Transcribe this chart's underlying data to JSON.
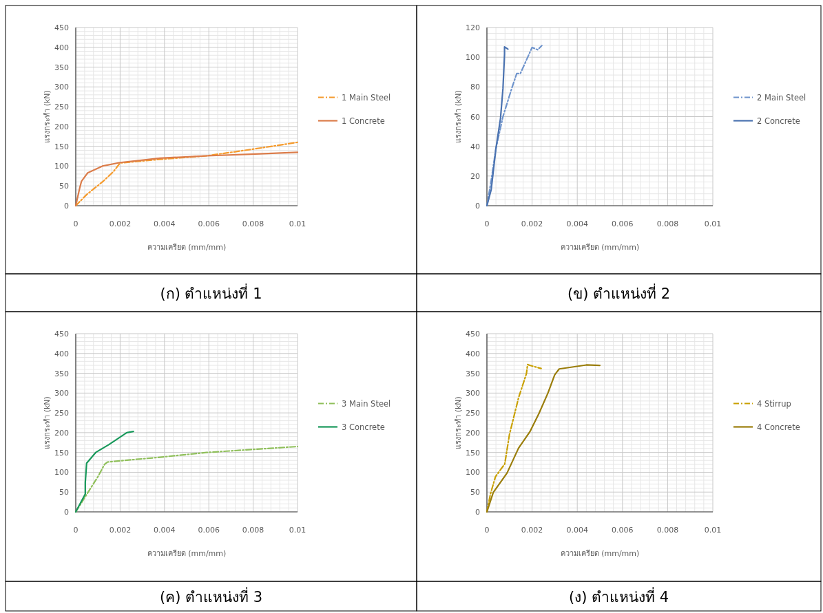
{
  "chart_data": [
    {
      "type": "line",
      "xlabel": "ความเครียด  (mm/mm)",
      "ylabel": "แรงกระทำ (kN)",
      "annotations": [
        "(ก)  ตำแหน่งที่ 1"
      ],
      "xlim": [
        0,
        0.01
      ],
      "xticks": [
        0,
        0.002,
        0.004,
        0.006,
        0.008,
        0.01
      ],
      "ylim": [
        0,
        450
      ],
      "yticks": [
        0,
        50,
        100,
        150,
        200,
        250,
        300,
        350,
        400,
        450
      ],
      "grid": true,
      "legend": "right",
      "series": [
        {
          "name": "1 Main Steel",
          "color": "#f59a2c",
          "line_style": "dashed",
          "x": [
            0,
            0.00049,
            0.0012,
            0.0017,
            0.002,
            0.0038,
            0.0059,
            0.0079,
            0.01
          ],
          "values": [
            0,
            28,
            60,
            86,
            108,
            117,
            126,
            142,
            160
          ]
        },
        {
          "name": "1 Concrete",
          "color": "#db7c4a",
          "line_style": "solid",
          "x": [
            0,
            0.00018,
            0.00026,
            0.00054,
            0.0012,
            0.002,
            0.0038,
            0.0059,
            0.0079,
            0.01
          ],
          "values": [
            0,
            45,
            62,
            83,
            100,
            109,
            120,
            126,
            130,
            135
          ]
        }
      ]
    },
    {
      "type": "line",
      "xlabel": "ความเครียด  (mm/mm)",
      "ylabel": "แรงกระทำ (kN)",
      "annotations": [
        "(ข)  ตำแหน่งที่ 2"
      ],
      "xlim": [
        0,
        0.01
      ],
      "xticks": [
        0,
        0.002,
        0.004,
        0.006,
        0.008,
        0.01
      ],
      "ylim": [
        0,
        120
      ],
      "yticks": [
        0,
        20,
        40,
        60,
        80,
        100,
        120
      ],
      "grid": true,
      "legend": "right",
      "series": [
        {
          "name": "2 Main Steel",
          "color": "#6f94cc",
          "line_style": "dashed",
          "x": [
            0,
            0.00019,
            0.0004,
            0.00071,
            0.00112,
            0.00132,
            0.00148,
            0.002,
            0.00225,
            0.00243
          ],
          "values": [
            0,
            17,
            38.6,
            60,
            80,
            89,
            89,
            106.6,
            105,
            107.8
          ]
        },
        {
          "name": "2 Concrete",
          "color": "#4a72b0",
          "line_style": "solid",
          "x": [
            0,
            0.00019,
            0.0004,
            0.0006,
            0.00071,
            0.00078,
            0.00078,
            0.00093
          ],
          "values": [
            0,
            10.8,
            38.6,
            58.7,
            78.8,
            102,
            107,
            105.5
          ]
        }
      ]
    },
    {
      "type": "line",
      "xlabel": "ความเครียด  (mm/mm)",
      "ylabel": "แรงกระทำ (kN)",
      "annotations": [
        "(ค)  ตำแหน่งที่ 3"
      ],
      "xlim": [
        0,
        0.01
      ],
      "xticks": [
        0,
        0.002,
        0.004,
        0.006,
        0.008,
        0.01
      ],
      "ylim": [
        0,
        450
      ],
      "yticks": [
        0,
        50,
        100,
        150,
        200,
        250,
        300,
        350,
        400,
        450
      ],
      "grid": true,
      "legend": "right",
      "series": [
        {
          "name": "3 Main Steel",
          "color": "#8fbf5a",
          "line_style": "dashed",
          "x": [
            0,
            0.00064,
            0.001,
            0.0013,
            0.00144,
            0.0038,
            0.0059,
            0.01
          ],
          "values": [
            0,
            57,
            89,
            120,
            126,
            138,
            150,
            165
          ]
        },
        {
          "name": "3 Concrete",
          "color": "#17985a",
          "line_style": "solid",
          "x": [
            0,
            0.00043,
            0.00043,
            0.00049,
            0.0009,
            0.0015,
            0.0023,
            0.0026
          ],
          "values": [
            0,
            45,
            74,
            123,
            150,
            170,
            200,
            203
          ]
        }
      ]
    },
    {
      "type": "line",
      "xlabel": "ความเครียด  (mm/mm)",
      "ylabel": "แรงกระทำ (kN)",
      "annotations": [
        "(ง)  ตำแหน่งที่ 4"
      ],
      "xlim": [
        0,
        0.01
      ],
      "xticks": [
        0,
        0.002,
        0.004,
        0.006,
        0.008,
        0.01
      ],
      "ylim": [
        0,
        450
      ],
      "yticks": [
        0,
        50,
        100,
        150,
        200,
        250,
        300,
        350,
        400,
        450
      ],
      "grid": true,
      "legend": "right",
      "series": [
        {
          "name": "4 Stirrup",
          "color": "#c9a000",
          "line_style": "dashed",
          "x": [
            0,
            0.00016,
            0.00038,
            0.00079,
            0.001,
            0.0014,
            0.00175,
            0.0018,
            0.0019,
            0.0024
          ],
          "values": [
            0,
            46,
            89,
            121,
            196,
            288,
            349,
            372,
            370,
            362
          ]
        },
        {
          "name": "4 Concrete",
          "color": "#9a7d0a",
          "line_style": "solid",
          "x": [
            0,
            0.00028,
            0.00089,
            0.0014,
            0.0019,
            0.0023,
            0.0027,
            0.003,
            0.0032,
            0.0044,
            0.005
          ],
          "values": [
            0,
            49,
            98,
            161,
            202,
            248,
            300,
            346,
            361,
            371,
            370
          ]
        }
      ]
    }
  ]
}
